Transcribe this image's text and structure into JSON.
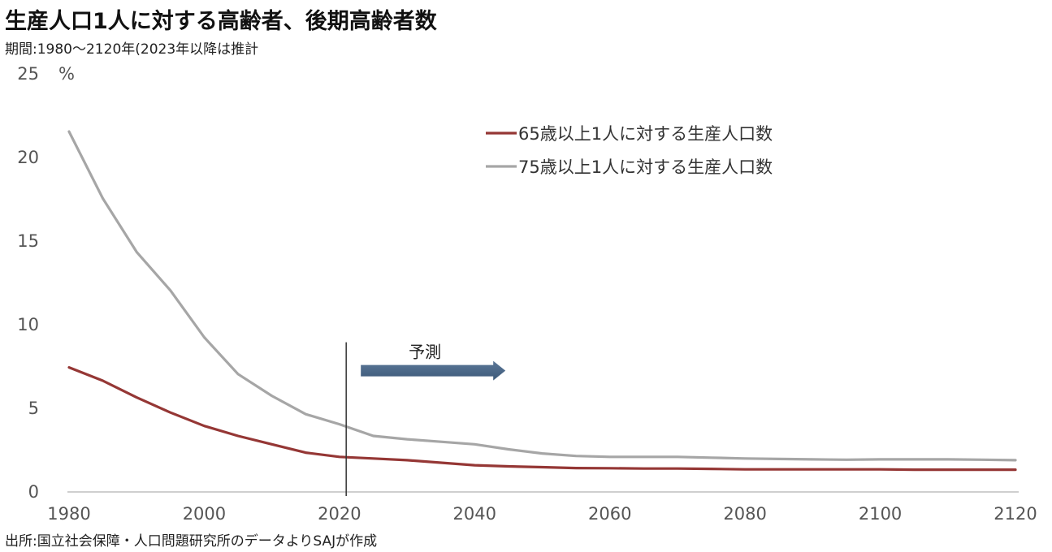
{
  "header": {
    "title": "生産人口1人に対する高齢者、後期高齢者数",
    "subtitle": "期間:1980～2120年(2023年以降は推計"
  },
  "footer": {
    "source": "出所:国立社会保障・人口問題研究所のデータよりSAJが作成"
  },
  "chart_data": {
    "type": "line",
    "title": "生産人口1人に対する高齢者、後期高齢者数",
    "unit_label": "%",
    "xlim": [
      1980,
      2120
    ],
    "ylim": [
      0,
      25
    ],
    "x_ticks": [
      "1980",
      "2000",
      "2020",
      "2040",
      "2060",
      "2080",
      "2100",
      "2120"
    ],
    "y_ticks": [
      "0",
      "5",
      "10",
      "15",
      "20",
      "25"
    ],
    "grid": false,
    "legend_position": "top-right",
    "annotation": {
      "text": "予測",
      "x_start": 2021
    },
    "x": [
      1980,
      1985,
      1990,
      1995,
      2000,
      2005,
      2010,
      2015,
      2020,
      2025,
      2030,
      2035,
      2040,
      2045,
      2050,
      2055,
      2060,
      2065,
      2070,
      2075,
      2080,
      2085,
      2090,
      2095,
      2100,
      2105,
      2110,
      2115,
      2120
    ],
    "series": [
      {
        "name": "65歳以上1人に対する生産人口数",
        "color": "#953735",
        "values": [
          7.4,
          6.6,
          5.6,
          4.7,
          3.9,
          3.3,
          2.8,
          2.3,
          2.05,
          1.95,
          1.85,
          1.7,
          1.55,
          1.48,
          1.43,
          1.38,
          1.37,
          1.35,
          1.35,
          1.33,
          1.3,
          1.3,
          1.3,
          1.3,
          1.3,
          1.28,
          1.28,
          1.28,
          1.28
        ]
      },
      {
        "name": "75歳以上1人に対する生産人口数",
        "color": "#a6a6a6",
        "values": [
          21.5,
          17.5,
          14.3,
          12.0,
          9.2,
          7.0,
          5.7,
          4.6,
          4.0,
          3.3,
          3.1,
          2.95,
          2.8,
          2.5,
          2.25,
          2.1,
          2.05,
          2.05,
          2.05,
          2.0,
          1.95,
          1.92,
          1.9,
          1.88,
          1.9,
          1.9,
          1.9,
          1.88,
          1.85
        ]
      }
    ]
  }
}
